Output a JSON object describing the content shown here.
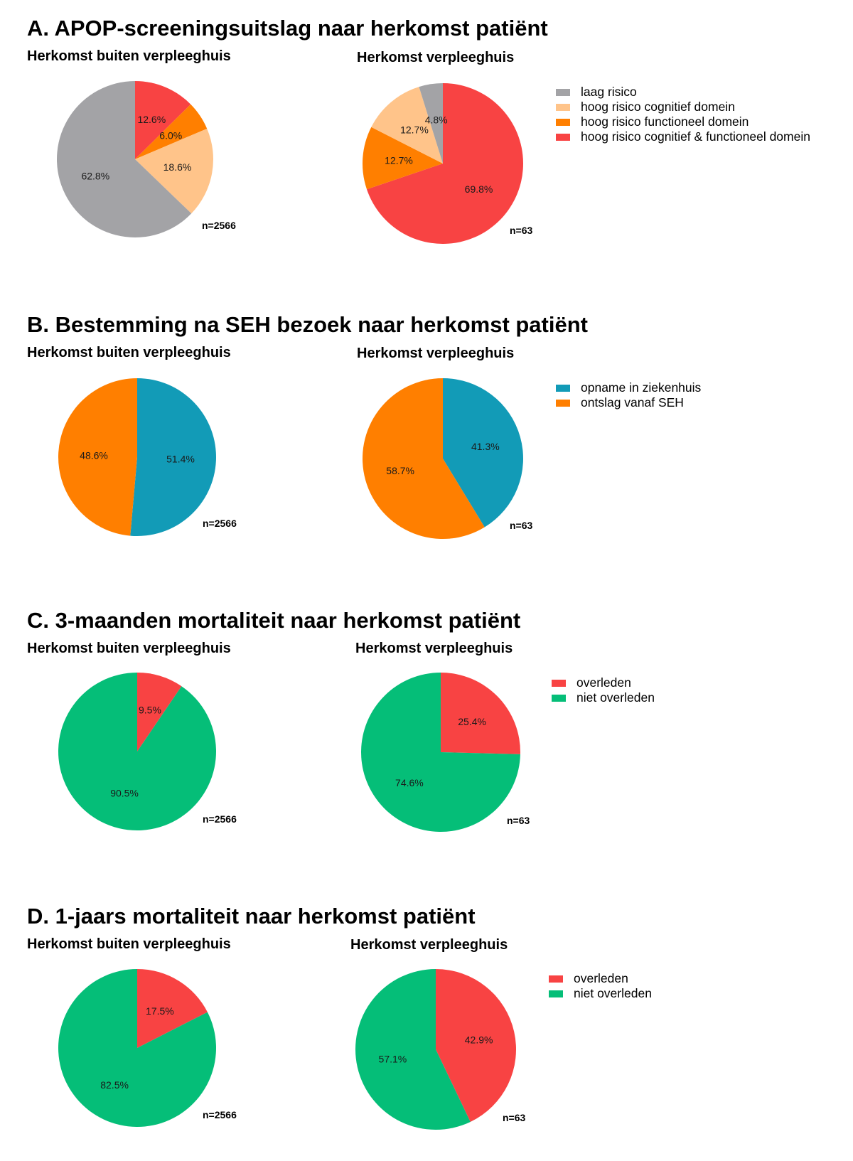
{
  "colors": {
    "laag_risico": "#A3A3A6",
    "cognitief": "#FFC48A",
    "functioneel": "#FF7F00",
    "cog_func": "#F84343",
    "opname": "#129BB7",
    "ontslag": "#FF7F00",
    "overleden": "#F84343",
    "niet_overleden": "#05BE78"
  },
  "sections": [
    {
      "title": "A. APOP-screeningsuitslag naar herkomst patiënt",
      "legend": [
        {
          "label": "laag risico",
          "color": "#A3A3A6"
        },
        {
          "label": "hoog risico cognitief domein",
          "color": "#FFC48A"
        },
        {
          "label": "hoog risico functioneel domein",
          "color": "#FF7F00"
        },
        {
          "label": "hoog risico cognitief & functioneel domein",
          "color": "#F84343"
        }
      ],
      "panels": [
        {
          "title": "Herkomst buiten verpleeghuis",
          "n": "n=2566"
        },
        {
          "title": "Herkomst verpleeghuis",
          "n": "n=63"
        }
      ]
    },
    {
      "title": "B. Bestemming na SEH bezoek naar herkomst patiënt",
      "legend": [
        {
          "label": "opname in ziekenhuis",
          "color": "#129BB7"
        },
        {
          "label": "ontslag vanaf SEH",
          "color": "#FF7F00"
        }
      ],
      "panels": [
        {
          "title": "Herkomst buiten verpleeghuis",
          "n": "n=2566"
        },
        {
          "title": "Herkomst verpleeghuis",
          "n": "n=63"
        }
      ]
    },
    {
      "title": "C. 3-maanden mortaliteit naar herkomst patiënt",
      "legend": [
        {
          "label": "overleden",
          "color": "#F84343"
        },
        {
          "label": "niet overleden",
          "color": "#05BE78"
        }
      ],
      "panels": [
        {
          "title": "Herkomst buiten verpleeghuis",
          "n": "n=2566"
        },
        {
          "title": "Herkomst verpleeghuis",
          "n": "n=63"
        }
      ]
    },
    {
      "title": "D. 1-jaars mortaliteit naar herkomst patiënt",
      "legend": [
        {
          "label": "overleden",
          "color": "#F84343"
        },
        {
          "label": "niet overleden",
          "color": "#05BE78"
        }
      ],
      "panels": [
        {
          "title": "Herkomst buiten verpleeghuis",
          "n": "n=2566"
        },
        {
          "title": "Herkomst verpleeghuis",
          "n": "n=63"
        }
      ]
    }
  ],
  "chart_data": [
    {
      "type": "pie",
      "title": "A. APOP-screeningsuitslag naar herkomst patiënt",
      "subtitle": "Herkomst buiten verpleeghuis",
      "slices": [
        {
          "label": "hoog risico cognitief & functioneel domein",
          "value": 12.6,
          "text": "12.6%",
          "color": "#F84343"
        },
        {
          "label": "hoog risico functioneel domein",
          "value": 6.0,
          "text": "6.0%",
          "color": "#FF7F00"
        },
        {
          "label": "hoog risico cognitief domein",
          "value": 18.6,
          "text": "18.6%",
          "color": "#FFC48A"
        },
        {
          "label": "laag risico",
          "value": 62.8,
          "text": "62.8%",
          "color": "#A3A3A6"
        }
      ],
      "n": "n=2566"
    },
    {
      "type": "pie",
      "title": "A. APOP-screeningsuitslag naar herkomst patiënt",
      "subtitle": "Herkomst verpleeghuis",
      "slices": [
        {
          "label": "hoog risico cognitief & functioneel domein",
          "value": 69.8,
          "text": "69.8%",
          "color": "#F84343"
        },
        {
          "label": "hoog risico functioneel domein",
          "value": 12.7,
          "text": "12.7%",
          "color": "#FF7F00"
        },
        {
          "label": "hoog risico cognitief domein",
          "value": 12.7,
          "text": "12.7%",
          "color": "#FFC48A"
        },
        {
          "label": "laag risico",
          "value": 4.8,
          "text": "4.8%",
          "color": "#A3A3A6"
        }
      ],
      "n": "n=63"
    },
    {
      "type": "pie",
      "title": "B. Bestemming na SEH bezoek naar herkomst patiënt",
      "subtitle": "Herkomst buiten verpleeghuis",
      "slices": [
        {
          "label": "opname in ziekenhuis",
          "value": 51.4,
          "text": "51.4%",
          "color": "#129BB7"
        },
        {
          "label": "ontslag vanaf SEH",
          "value": 48.6,
          "text": "48.6%",
          "color": "#FF7F00"
        }
      ],
      "n": "n=2566"
    },
    {
      "type": "pie",
      "title": "B. Bestemming na SEH bezoek naar herkomst patiënt",
      "subtitle": "Herkomst verpleeghuis",
      "slices": [
        {
          "label": "opname in ziekenhuis",
          "value": 41.3,
          "text": "41.3%",
          "color": "#129BB7"
        },
        {
          "label": "ontslag vanaf SEH",
          "value": 58.7,
          "text": "58.7%",
          "color": "#FF7F00"
        }
      ],
      "n": "n=63"
    },
    {
      "type": "pie",
      "title": "C. 3-maanden mortaliteit naar herkomst patiënt",
      "subtitle": "Herkomst buiten verpleeghuis",
      "slices": [
        {
          "label": "overleden",
          "value": 9.5,
          "text": "9.5%",
          "color": "#F84343"
        },
        {
          "label": "niet overleden",
          "value": 90.5,
          "text": "90.5%",
          "color": "#05BE78"
        }
      ],
      "n": "n=2566"
    },
    {
      "type": "pie",
      "title": "C. 3-maanden mortaliteit naar herkomst patiënt",
      "subtitle": "Herkomst verpleeghuis",
      "slices": [
        {
          "label": "overleden",
          "value": 25.4,
          "text": "25.4%",
          "color": "#F84343"
        },
        {
          "label": "niet overleden",
          "value": 74.6,
          "text": "74.6%",
          "color": "#05BE78"
        }
      ],
      "n": "n=63"
    },
    {
      "type": "pie",
      "title": "D. 1-jaars mortaliteit naar herkomst patiënt",
      "subtitle": "Herkomst buiten verpleeghuis",
      "slices": [
        {
          "label": "overleden",
          "value": 17.5,
          "text": "17.5%",
          "color": "#F84343"
        },
        {
          "label": "niet overleden",
          "value": 82.5,
          "text": "82.5%",
          "color": "#05BE78"
        }
      ],
      "n": "n=2566"
    },
    {
      "type": "pie",
      "title": "D. 1-jaars mortaliteit naar herkomst patiënt",
      "subtitle": "Herkomst verpleeghuis",
      "slices": [
        {
          "label": "overleden",
          "value": 42.9,
          "text": "42.9%",
          "color": "#F84343"
        },
        {
          "label": "niet overleden",
          "value": 57.1,
          "text": "57.1%",
          "color": "#05BE78"
        }
      ],
      "n": "n=63"
    }
  ]
}
